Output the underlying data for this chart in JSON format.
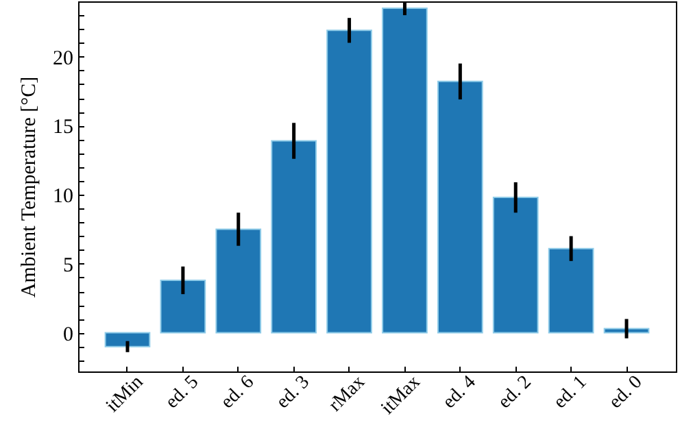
{
  "chart_data": {
    "type": "bar",
    "ylabel": "Ambient Temperature [°C]",
    "categories": [
      "itMin",
      "ed. 5",
      "ed. 6",
      "ed. 3",
      "rMax",
      "itMax",
      "ed. 4",
      "ed. 2",
      "ed. 1",
      "ed. 0"
    ],
    "values": [
      -1.0,
      3.8,
      7.5,
      13.9,
      21.9,
      23.5,
      18.2,
      9.8,
      6.1,
      0.3
    ],
    "errors": [
      0.4,
      1.0,
      1.2,
      1.3,
      0.9,
      0.5,
      1.3,
      1.1,
      0.9,
      0.7
    ],
    "color": "#1f77b4",
    "ylim": [
      -2.8,
      24
    ],
    "yticks": [
      {
        "value": -2,
        "label": null
      },
      {
        "value": -1,
        "label": null
      },
      0,
      {
        "value": 1,
        "label": null
      },
      {
        "value": 2,
        "label": null
      },
      {
        "value": 3,
        "label": null
      },
      {
        "value": 4,
        "label": null
      },
      5,
      {
        "value": 6,
        "label": null
      },
      {
        "value": 7,
        "label": null
      },
      {
        "value": 8,
        "label": null
      },
      {
        "value": 9,
        "label": null
      },
      10,
      {
        "value": 11,
        "label": null
      },
      {
        "value": 12,
        "label": null
      },
      {
        "value": 13,
        "label": null
      },
      {
        "value": 14,
        "label": null
      },
      15,
      {
        "value": 16,
        "label": null
      },
      {
        "value": 17,
        "label": null
      },
      {
        "value": 18,
        "label": null
      },
      {
        "value": 19,
        "label": null
      },
      20,
      {
        "value": 21,
        "label": null
      },
      {
        "value": 22,
        "label": null
      },
      {
        "value": 23,
        "label": null
      }
    ],
    "grid": false
  }
}
